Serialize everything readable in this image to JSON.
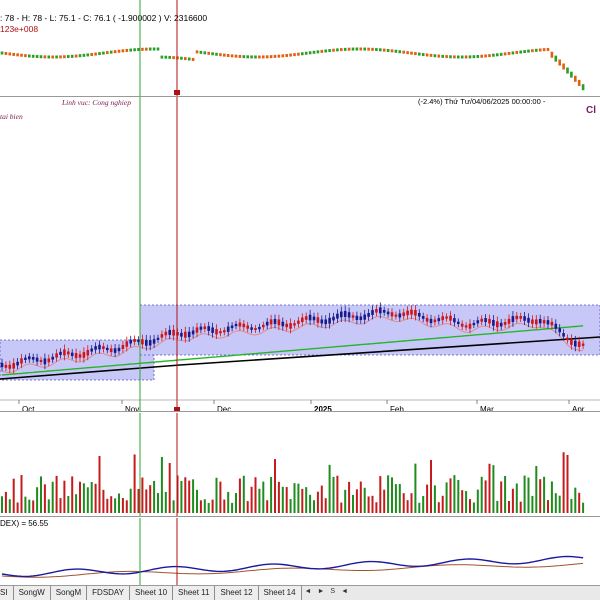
{
  "top_panel": {
    "ohlc_text": ": 78 - H: 78 - L: 75.1 - C: 76.1 ( -1.900002 ) V: 2316600",
    "sub_text": "123e+008"
  },
  "main_panel": {
    "sector_label": "Linh vuc: Cong nghiep",
    "left_label": "tai bien",
    "date_info": "(-2.4%) Thứ Tư/04/06/2025 00:00:00 -",
    "corner_text": "Cl"
  },
  "x_axis": {
    "labels": [
      "Oct",
      "Nov",
      "Dec",
      "2025",
      "Feb",
      "Mar",
      "Apr"
    ]
  },
  "lower_panel": {
    "adx_text": "DEX) = 56.55"
  },
  "tabs": [
    "SI",
    "SongW",
    "SongM",
    "FDSDAY",
    "Sheet 10",
    "Sheet 11",
    "Sheet 12",
    "Sheet 14"
  ],
  "nav": [
    "◄",
    "►",
    "S",
    "◄"
  ],
  "colors": {
    "up": "#1a1a8c",
    "down": "#d21414",
    "vol_up": "#1f8c1f",
    "vol_down": "#c41c1c",
    "channel": "#c8c8f8",
    "cursor_green": "#2fa52f",
    "cursor_red": "#b01010",
    "ma_black": "#000000",
    "ma_green": "#28b428",
    "ma_pink": "#e28b8b"
  },
  "chart_data": {
    "type": "candlestick",
    "x_labels": [
      "Oct",
      "Nov",
      "Dec",
      "2025",
      "Feb",
      "Mar",
      "Apr"
    ],
    "last_bar": {
      "open": 78,
      "high": 78,
      "low": 75.1,
      "close": 76.1,
      "change": -1.900002,
      "volume": 2316600
    },
    "adx": 56.55
  }
}
